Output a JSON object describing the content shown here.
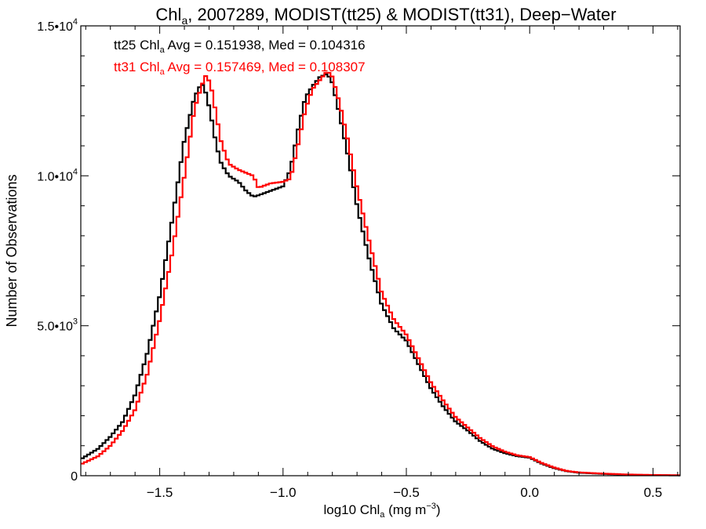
{
  "chart_data": {
    "type": "line",
    "title": {
      "base": "Chl",
      "sub": "a",
      "rest": ", 2007289, MODIST(tt25) & MODIST(tt31), Deep−Water"
    },
    "xlabel": {
      "base": "log10 Chl",
      "sub": "a",
      "rest": " (mg m",
      "sup": "−3",
      "end": ")"
    },
    "ylabel": "Number of Observations",
    "xlim": [
      -1.82,
      0.61
    ],
    "ylim": [
      0,
      15000
    ],
    "x_ticks": [
      {
        "value": -1.5,
        "label": "−1.5"
      },
      {
        "value": -1.0,
        "label": "−1.0"
      },
      {
        "value": -0.5,
        "label": "−0.5"
      },
      {
        "value": 0.0,
        "label": "0.0"
      },
      {
        "value": 0.5,
        "label": "0.5"
      }
    ],
    "y_ticks": [
      {
        "value": 0,
        "mant": "0",
        "exp": ""
      },
      {
        "value": 5000,
        "mant": "5.0•10",
        "exp": "3"
      },
      {
        "value": 10000,
        "mant": "1.0•10",
        "exp": "4"
      },
      {
        "value": 15000,
        "mant": "1.5•10",
        "exp": "4"
      }
    ],
    "stats": [
      {
        "series": "tt25",
        "base": "tt25 Chl",
        "sub": "a",
        "rest": " Avg = 0.151938, Med = 0.104316",
        "color": "#000000"
      },
      {
        "series": "tt31",
        "base": "tt31 Chl",
        "sub": "a",
        "rest": " Avg = 0.157469, Med = 0.108307",
        "color": "#ff0000"
      }
    ],
    "grid": false,
    "step": true,
    "series": [
      {
        "name": "tt25",
        "color": "#000000",
        "x": [
          -1.82,
          -1.75,
          -1.7,
          -1.65,
          -1.6,
          -1.55,
          -1.5,
          -1.45,
          -1.4,
          -1.36,
          -1.33,
          -1.31,
          -1.29,
          -1.27,
          -1.25,
          -1.22,
          -1.18,
          -1.15,
          -1.12,
          -1.1,
          -1.05,
          -1.0,
          -0.97,
          -0.94,
          -0.91,
          -0.88,
          -0.85,
          -0.82,
          -0.8,
          -0.77,
          -0.74,
          -0.7,
          -0.65,
          -0.6,
          -0.55,
          -0.5,
          -0.45,
          -0.4,
          -0.35,
          -0.3,
          -0.25,
          -0.2,
          -0.15,
          -0.1,
          -0.05,
          0.0,
          0.05,
          0.1,
          0.15,
          0.2,
          0.3,
          0.4,
          0.5,
          0.61
        ],
        "y": [
          550,
          900,
          1300,
          1800,
          2700,
          4100,
          6000,
          8500,
          11200,
          12600,
          13100,
          12700,
          11900,
          11000,
          10400,
          10000,
          9800,
          9500,
          9300,
          9350,
          9500,
          9650,
          10200,
          11500,
          12600,
          13000,
          13300,
          13400,
          13100,
          12000,
          10800,
          9000,
          7200,
          5700,
          4900,
          4500,
          3700,
          2900,
          2300,
          1800,
          1500,
          1150,
          900,
          750,
          650,
          600,
          400,
          250,
          150,
          100,
          60,
          30,
          20,
          10
        ]
      },
      {
        "name": "tt31",
        "color": "#ff0000",
        "x": [
          -1.82,
          -1.75,
          -1.7,
          -1.65,
          -1.6,
          -1.55,
          -1.5,
          -1.45,
          -1.4,
          -1.36,
          -1.33,
          -1.31,
          -1.29,
          -1.27,
          -1.25,
          -1.22,
          -1.18,
          -1.15,
          -1.12,
          -1.1,
          -1.05,
          -1.0,
          -0.97,
          -0.94,
          -0.91,
          -0.88,
          -0.85,
          -0.82,
          -0.8,
          -0.77,
          -0.74,
          -0.7,
          -0.65,
          -0.6,
          -0.55,
          -0.5,
          -0.45,
          -0.4,
          -0.35,
          -0.3,
          -0.25,
          -0.2,
          -0.15,
          -0.1,
          -0.05,
          0.0,
          0.05,
          0.1,
          0.15,
          0.2,
          0.3,
          0.4,
          0.5,
          0.61
        ],
        "y": [
          380,
          650,
          1000,
          1500,
          2200,
          3400,
          5200,
          7400,
          10000,
          12200,
          13000,
          13400,
          12900,
          12000,
          11100,
          10400,
          10200,
          10100,
          10000,
          9600,
          9750,
          9800,
          9900,
          11000,
          12200,
          12900,
          13200,
          13500,
          13300,
          12400,
          11300,
          9600,
          7800,
          6100,
          5200,
          4700,
          3900,
          3100,
          2500,
          1950,
          1600,
          1250,
          980,
          800,
          680,
          620,
          420,
          270,
          160,
          110,
          70,
          40,
          25,
          15
        ]
      }
    ]
  }
}
